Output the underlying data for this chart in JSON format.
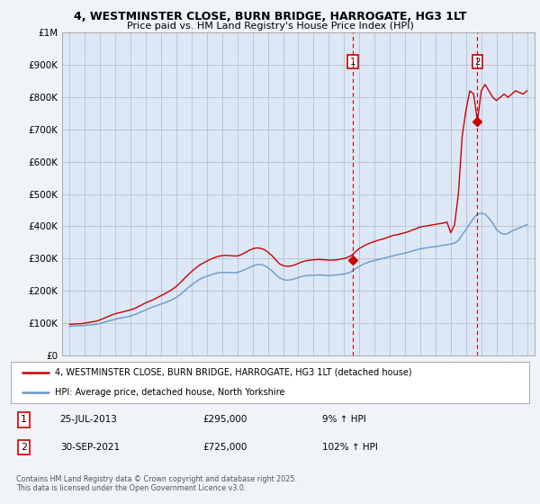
{
  "title_line1": "4, WESTMINSTER CLOSE, BURN BRIDGE, HARROGATE, HG3 1LT",
  "title_line2": "Price paid vs. HM Land Registry's House Price Index (HPI)",
  "property_label": "4, WESTMINSTER CLOSE, BURN BRIDGE, HARROGATE, HG3 1LT (detached house)",
  "hpi_label": "HPI: Average price, detached house, North Yorkshire",
  "sale1_date": "25-JUL-2013",
  "sale1_price": "£295,000",
  "sale1_hpi": "9% ↑ HPI",
  "sale2_date": "30-SEP-2021",
  "sale2_price": "£725,000",
  "sale2_hpi": "102% ↑ HPI",
  "footer": "Contains HM Land Registry data © Crown copyright and database right 2025.\nThis data is licensed under the Open Government Licence v3.0.",
  "property_color": "#cc0000",
  "hpi_color": "#6699cc",
  "vline_color": "#cc0000",
  "background_color": "#f0f4f8",
  "plot_bg_color": "#dce8f5",
  "legend_bg_color": "#ffffff",
  "ylim": [
    0,
    1000000
  ],
  "xlim_start": 1994.5,
  "xlim_end": 2025.5,
  "yticks": [
    0,
    100000,
    200000,
    300000,
    400000,
    500000,
    600000,
    700000,
    800000,
    900000,
    1000000
  ],
  "ytick_labels": [
    "£0",
    "£100K",
    "£200K",
    "£300K",
    "£400K",
    "£500K",
    "£600K",
    "£700K",
    "£800K",
    "£900K",
    "£1M"
  ],
  "xticks": [
    1995,
    1996,
    1997,
    1998,
    1999,
    2000,
    2001,
    2002,
    2003,
    2004,
    2005,
    2006,
    2007,
    2008,
    2009,
    2010,
    2011,
    2012,
    2013,
    2014,
    2015,
    2016,
    2017,
    2018,
    2019,
    2020,
    2021,
    2022,
    2023,
    2024,
    2025
  ],
  "sale1_x": 2013.56,
  "sale1_y": 295000,
  "sale2_x": 2021.75,
  "sale2_y": 725000,
  "hpi_years": [
    1995.0,
    1995.25,
    1995.5,
    1995.75,
    1996.0,
    1996.25,
    1996.5,
    1996.75,
    1997.0,
    1997.25,
    1997.5,
    1997.75,
    1998.0,
    1998.25,
    1998.5,
    1998.75,
    1999.0,
    1999.25,
    1999.5,
    1999.75,
    2000.0,
    2000.25,
    2000.5,
    2000.75,
    2001.0,
    2001.25,
    2001.5,
    2001.75,
    2002.0,
    2002.25,
    2002.5,
    2002.75,
    2003.0,
    2003.25,
    2003.5,
    2003.75,
    2004.0,
    2004.25,
    2004.5,
    2004.75,
    2005.0,
    2005.25,
    2005.5,
    2005.75,
    2006.0,
    2006.25,
    2006.5,
    2006.75,
    2007.0,
    2007.25,
    2007.5,
    2007.75,
    2008.0,
    2008.25,
    2008.5,
    2008.75,
    2009.0,
    2009.25,
    2009.5,
    2009.75,
    2010.0,
    2010.25,
    2010.5,
    2010.75,
    2011.0,
    2011.25,
    2011.5,
    2011.75,
    2012.0,
    2012.25,
    2012.5,
    2012.75,
    2013.0,
    2013.25,
    2013.5,
    2013.75,
    2014.0,
    2014.25,
    2014.5,
    2014.75,
    2015.0,
    2015.25,
    2015.5,
    2015.75,
    2016.0,
    2016.25,
    2016.5,
    2016.75,
    2017.0,
    2017.25,
    2017.5,
    2017.75,
    2018.0,
    2018.25,
    2018.5,
    2018.75,
    2019.0,
    2019.25,
    2019.5,
    2019.75,
    2020.0,
    2020.25,
    2020.5,
    2020.75,
    2021.0,
    2021.25,
    2021.5,
    2021.75,
    2022.0,
    2022.25,
    2022.5,
    2022.75,
    2023.0,
    2023.25,
    2023.5,
    2023.75,
    2024.0,
    2024.25,
    2024.5,
    2024.75,
    2025.0
  ],
  "hpi_values": [
    90000,
    91000,
    91500,
    92000,
    93000,
    94000,
    95000,
    96000,
    99000,
    102000,
    106000,
    109000,
    112000,
    115000,
    117000,
    119000,
    122000,
    126000,
    131000,
    136000,
    141000,
    146000,
    151000,
    155000,
    159000,
    163000,
    168000,
    173000,
    180000,
    188000,
    198000,
    209000,
    218000,
    227000,
    235000,
    241000,
    245000,
    249000,
    253000,
    256000,
    257000,
    257000,
    257000,
    256000,
    257000,
    261000,
    266000,
    271000,
    277000,
    281000,
    282000,
    279000,
    272000,
    263000,
    251000,
    241000,
    235000,
    233000,
    234000,
    237000,
    241000,
    245000,
    247000,
    248000,
    248000,
    249000,
    249000,
    248000,
    247000,
    248000,
    249000,
    251000,
    252000,
    255000,
    260000,
    268000,
    276000,
    282000,
    287000,
    291000,
    294000,
    297000,
    300000,
    303000,
    306000,
    309000,
    312000,
    314000,
    317000,
    320000,
    324000,
    327000,
    330000,
    332000,
    334000,
    336000,
    337000,
    339000,
    341000,
    343000,
    345000,
    348000,
    356000,
    374000,
    390000,
    408000,
    425000,
    438000,
    440000,
    438000,
    425000,
    410000,
    390000,
    380000,
    375000,
    378000,
    385000,
    390000,
    395000,
    400000,
    405000
  ],
  "prop_years": [
    1995.0,
    1995.25,
    1995.5,
    1995.75,
    1996.0,
    1996.25,
    1996.5,
    1996.75,
    1997.0,
    1997.25,
    1997.5,
    1997.75,
    1998.0,
    1998.25,
    1998.5,
    1998.75,
    1999.0,
    1999.25,
    1999.5,
    1999.75,
    2000.0,
    2000.25,
    2000.5,
    2000.75,
    2001.0,
    2001.25,
    2001.5,
    2001.75,
    2002.0,
    2002.25,
    2002.5,
    2002.75,
    2003.0,
    2003.25,
    2003.5,
    2003.75,
    2004.0,
    2004.25,
    2004.5,
    2004.75,
    2005.0,
    2005.25,
    2005.5,
    2005.75,
    2006.0,
    2006.25,
    2006.5,
    2006.75,
    2007.0,
    2007.25,
    2007.5,
    2007.75,
    2008.0,
    2008.25,
    2008.5,
    2008.75,
    2009.0,
    2009.25,
    2009.5,
    2009.75,
    2010.0,
    2010.25,
    2010.5,
    2010.75,
    2011.0,
    2011.25,
    2011.5,
    2011.75,
    2012.0,
    2012.25,
    2012.5,
    2012.75,
    2013.0,
    2013.25,
    2013.5,
    2013.75,
    2014.0,
    2014.25,
    2014.5,
    2014.75,
    2015.0,
    2015.25,
    2015.5,
    2015.75,
    2016.0,
    2016.25,
    2016.5,
    2016.75,
    2017.0,
    2017.25,
    2017.5,
    2017.75,
    2018.0,
    2018.25,
    2018.5,
    2018.75,
    2019.0,
    2019.25,
    2019.5,
    2019.75,
    2020.0,
    2020.25,
    2020.5,
    2020.75,
    2021.0,
    2021.25,
    2021.5,
    2021.75,
    2022.0,
    2022.25,
    2022.5,
    2022.75,
    2023.0,
    2023.25,
    2023.5,
    2023.75,
    2024.0,
    2024.25,
    2024.5,
    2024.75,
    2025.0
  ],
  "prop_values": [
    96000,
    97000,
    97500,
    98000,
    100000,
    102000,
    104000,
    106000,
    110000,
    115000,
    120000,
    125000,
    129000,
    132000,
    135000,
    138000,
    141000,
    145000,
    151000,
    157000,
    163000,
    168000,
    173000,
    179000,
    185000,
    191000,
    198000,
    205000,
    214000,
    225000,
    237000,
    249000,
    260000,
    270000,
    279000,
    286000,
    292000,
    298000,
    303000,
    307000,
    309000,
    310000,
    309000,
    308000,
    308000,
    312000,
    318000,
    325000,
    330000,
    333000,
    332000,
    328000,
    320000,
    310000,
    297000,
    284000,
    278000,
    276000,
    277000,
    280000,
    285000,
    290000,
    293000,
    295000,
    296000,
    297000,
    297000,
    296000,
    295000,
    295000,
    296000,
    298000,
    300000,
    304000,
    310000,
    321000,
    331000,
    338000,
    344000,
    349000,
    353000,
    357000,
    360000,
    364000,
    368000,
    372000,
    374000,
    377000,
    380000,
    384000,
    389000,
    393000,
    398000,
    400000,
    402000,
    404000,
    406000,
    408000,
    410000,
    413000,
    380000,
    405000,
    500000,
    680000,
    760000,
    820000,
    810000,
    725000,
    820000,
    840000,
    820000,
    800000,
    790000,
    800000,
    810000,
    800000,
    810000,
    820000,
    815000,
    810000,
    820000
  ]
}
